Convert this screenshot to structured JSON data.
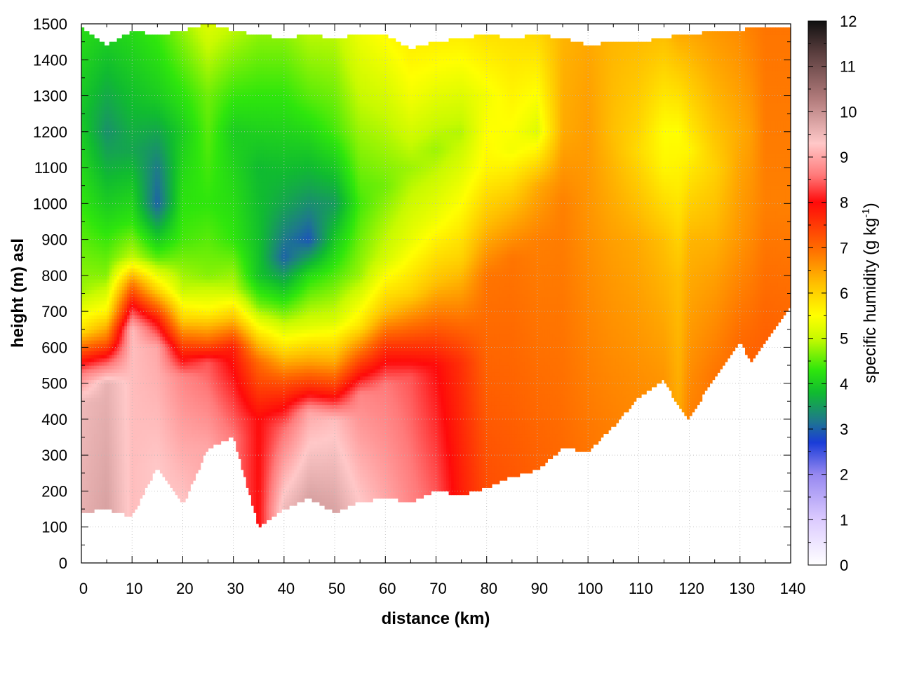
{
  "chart_data": {
    "type": "heatmap",
    "title": "",
    "xlabel": "distance (km)",
    "ylabel": "height (m) asl",
    "xlim": [
      0,
      140
    ],
    "ylim": [
      0,
      1500
    ],
    "x_ticks": [
      0,
      10,
      20,
      30,
      40,
      50,
      60,
      70,
      80,
      90,
      100,
      110,
      120,
      130,
      140
    ],
    "y_ticks": [
      0,
      100,
      200,
      300,
      400,
      500,
      600,
      700,
      800,
      900,
      1000,
      1100,
      1200,
      1300,
      1400,
      1500
    ],
    "grid": true,
    "colorbar": {
      "label_main": "specific humidity (g kg",
      "label_sup": "-1",
      "label_close": ")",
      "range": [
        0,
        12
      ],
      "ticks": [
        0,
        1,
        2,
        3,
        4,
        5,
        6,
        7,
        8,
        9,
        10,
        11,
        12
      ],
      "colors": [
        {
          "value": 0,
          "color": "#ffffff"
        },
        {
          "value": 1,
          "color": "#dccbff"
        },
        {
          "value": 2,
          "color": "#9688f0"
        },
        {
          "value": 2.7,
          "color": "#1a3cd8"
        },
        {
          "value": 3.2,
          "color": "#1e7a8a"
        },
        {
          "value": 3.8,
          "color": "#10bb30"
        },
        {
          "value": 4.3,
          "color": "#2ee60c"
        },
        {
          "value": 5,
          "color": "#c8fa00"
        },
        {
          "value": 5.5,
          "color": "#ffff00"
        },
        {
          "value": 6.2,
          "color": "#ffc000"
        },
        {
          "value": 7,
          "color": "#ff6a00"
        },
        {
          "value": 8,
          "color": "#ff0a0a"
        },
        {
          "value": 8.6,
          "color": "#ff7a7a"
        },
        {
          "value": 9.3,
          "color": "#ffc8c8"
        },
        {
          "value": 10.3,
          "color": "#b07a7a"
        },
        {
          "value": 11.3,
          "color": "#5a3e3e"
        },
        {
          "value": 12,
          "color": "#101010"
        }
      ]
    },
    "profiles": [
      {
        "x": 0,
        "ground": 140,
        "top": 1490,
        "q": [
          [
            140,
            9.6
          ],
          [
            450,
            9.5
          ],
          [
            530,
            8.6
          ],
          [
            580,
            7.5
          ],
          [
            650,
            5.8
          ],
          [
            760,
            4.8
          ],
          [
            1000,
            4.3
          ],
          [
            1250,
            3.9
          ],
          [
            1500,
            4.2
          ]
        ]
      },
      {
        "x": 5,
        "ground": 150,
        "top": 1440,
        "q": [
          [
            150,
            9.8
          ],
          [
            500,
            9.6
          ],
          [
            560,
            8.4
          ],
          [
            620,
            7.0
          ],
          [
            700,
            5.6
          ],
          [
            800,
            4.7
          ],
          [
            1000,
            4.0
          ],
          [
            1200,
            3.4
          ],
          [
            1500,
            4.1
          ]
        ]
      },
      {
        "x": 10,
        "ground": 130,
        "top": 1480,
        "q": [
          [
            130,
            9.2
          ],
          [
            650,
            9.2
          ],
          [
            720,
            8.0
          ],
          [
            780,
            6.8
          ],
          [
            850,
            5.0
          ],
          [
            950,
            4.3
          ],
          [
            1150,
            3.6
          ],
          [
            1500,
            4.2
          ]
        ]
      },
      {
        "x": 15,
        "ground": 270,
        "top": 1470,
        "q": [
          [
            270,
            9.3
          ],
          [
            600,
            9.0
          ],
          [
            680,
            7.8
          ],
          [
            760,
            6.0
          ],
          [
            850,
            4.5
          ],
          [
            1000,
            3.0
          ],
          [
            1100,
            3.2
          ],
          [
            1300,
            4.0
          ],
          [
            1500,
            4.4
          ]
        ]
      },
      {
        "x": 20,
        "ground": 160,
        "top": 1480,
        "q": [
          [
            160,
            9.3
          ],
          [
            520,
            8.7
          ],
          [
            600,
            7.5
          ],
          [
            680,
            6.0
          ],
          [
            760,
            5.0
          ],
          [
            900,
            4.4
          ],
          [
            1200,
            4.0
          ],
          [
            1500,
            4.8
          ]
        ]
      },
      {
        "x": 25,
        "ground": 320,
        "top": 1500,
        "q": [
          [
            320,
            9.0
          ],
          [
            560,
            8.4
          ],
          [
            620,
            7.0
          ],
          [
            700,
            5.6
          ],
          [
            800,
            4.7
          ],
          [
            1000,
            4.3
          ],
          [
            1300,
            4.6
          ],
          [
            1500,
            5.2
          ]
        ]
      },
      {
        "x": 30,
        "ground": 350,
        "top": 1480,
        "q": [
          [
            350,
            8.6
          ],
          [
            600,
            7.8
          ],
          [
            680,
            6.2
          ],
          [
            760,
            5.0
          ],
          [
            900,
            4.3
          ],
          [
            1200,
            4.0
          ],
          [
            1500,
            5.0
          ]
        ]
      },
      {
        "x": 35,
        "ground": 100,
        "top": 1470,
        "q": [
          [
            100,
            8.0
          ],
          [
            400,
            8.0
          ],
          [
            560,
            7.0
          ],
          [
            650,
            5.6
          ],
          [
            720,
            4.6
          ],
          [
            800,
            3.9
          ],
          [
            1100,
            3.8
          ],
          [
            1500,
            4.8
          ]
        ]
      },
      {
        "x": 40,
        "ground": 150,
        "top": 1460,
        "q": [
          [
            150,
            9.5
          ],
          [
            380,
            8.5
          ],
          [
            500,
            7.3
          ],
          [
            600,
            5.8
          ],
          [
            700,
            4.6
          ],
          [
            850,
            3.0
          ],
          [
            1000,
            3.6
          ],
          [
            1300,
            4.3
          ],
          [
            1500,
            4.8
          ]
        ]
      },
      {
        "x": 45,
        "ground": 180,
        "top": 1470,
        "q": [
          [
            180,
            9.8
          ],
          [
            420,
            9.0
          ],
          [
            480,
            7.8
          ],
          [
            560,
            6.5
          ],
          [
            660,
            5.2
          ],
          [
            800,
            4.2
          ],
          [
            900,
            2.9
          ],
          [
            1050,
            3.6
          ],
          [
            1300,
            4.5
          ],
          [
            1500,
            5.0
          ]
        ]
      },
      {
        "x": 50,
        "ground": 140,
        "top": 1460,
        "q": [
          [
            140,
            9.8
          ],
          [
            400,
            9.2
          ],
          [
            470,
            7.8
          ],
          [
            560,
            6.4
          ],
          [
            680,
            5.1
          ],
          [
            850,
            4.2
          ],
          [
            1000,
            3.5
          ],
          [
            1200,
            4.4
          ],
          [
            1500,
            5.0
          ]
        ]
      },
      {
        "x": 55,
        "ground": 170,
        "top": 1470,
        "q": [
          [
            170,
            9.3
          ],
          [
            470,
            8.7
          ],
          [
            560,
            7.4
          ],
          [
            660,
            5.8
          ],
          [
            800,
            4.8
          ],
          [
            1000,
            4.4
          ],
          [
            1200,
            4.8
          ],
          [
            1500,
            5.4
          ]
        ]
      },
      {
        "x": 60,
        "ground": 180,
        "top": 1470,
        "q": [
          [
            180,
            9.0
          ],
          [
            500,
            8.6
          ],
          [
            600,
            7.6
          ],
          [
            700,
            6.2
          ],
          [
            850,
            5.1
          ],
          [
            1050,
            4.6
          ],
          [
            1250,
            5.0
          ],
          [
            1500,
            5.6
          ]
        ]
      },
      {
        "x": 65,
        "ground": 170,
        "top": 1430,
        "q": [
          [
            170,
            8.7
          ],
          [
            520,
            8.4
          ],
          [
            620,
            7.4
          ],
          [
            750,
            6.0
          ],
          [
            900,
            5.3
          ],
          [
            1100,
            4.8
          ],
          [
            1300,
            5.4
          ],
          [
            1500,
            5.8
          ]
        ]
      },
      {
        "x": 70,
        "ground": 200,
        "top": 1450,
        "q": [
          [
            200,
            8.4
          ],
          [
            550,
            8.0
          ],
          [
            650,
            7.2
          ],
          [
            780,
            6.2
          ],
          [
            950,
            5.4
          ],
          [
            1150,
            4.8
          ],
          [
            1350,
            5.4
          ],
          [
            1500,
            5.8
          ]
        ]
      },
      {
        "x": 75,
        "ground": 190,
        "top": 1460,
        "q": [
          [
            190,
            7.8
          ],
          [
            560,
            7.6
          ],
          [
            700,
            6.8
          ],
          [
            850,
            6.0
          ],
          [
            1000,
            5.5
          ],
          [
            1200,
            4.9
          ],
          [
            1500,
            5.8
          ]
        ]
      },
      {
        "x": 80,
        "ground": 210,
        "top": 1470,
        "q": [
          [
            210,
            7.3
          ],
          [
            800,
            6.9
          ],
          [
            950,
            6.2
          ],
          [
            1100,
            5.6
          ],
          [
            1300,
            5.4
          ],
          [
            1500,
            5.9
          ]
        ]
      },
      {
        "x": 85,
        "ground": 240,
        "top": 1460,
        "q": [
          [
            240,
            7.2
          ],
          [
            850,
            6.9
          ],
          [
            1000,
            6.2
          ],
          [
            1150,
            5.4
          ],
          [
            1500,
            5.9
          ]
        ]
      },
      {
        "x": 90,
        "ground": 260,
        "top": 1470,
        "q": [
          [
            260,
            7.1
          ],
          [
            900,
            6.8
          ],
          [
            1050,
            6.4
          ],
          [
            1200,
            5.2
          ],
          [
            1500,
            6.0
          ]
        ]
      },
      {
        "x": 95,
        "ground": 320,
        "top": 1460,
        "q": [
          [
            320,
            7.0
          ],
          [
            1000,
            6.8
          ],
          [
            1200,
            6.4
          ],
          [
            1500,
            6.3
          ]
        ]
      },
      {
        "x": 100,
        "ground": 310,
        "top": 1440,
        "q": [
          [
            310,
            6.9
          ],
          [
            1000,
            6.6
          ],
          [
            1300,
            6.5
          ],
          [
            1500,
            6.4
          ]
        ]
      },
      {
        "x": 105,
        "ground": 380,
        "top": 1450,
        "q": [
          [
            380,
            6.8
          ],
          [
            900,
            6.5
          ],
          [
            1200,
            6.2
          ],
          [
            1500,
            6.3
          ]
        ]
      },
      {
        "x": 110,
        "ground": 460,
        "top": 1450,
        "q": [
          [
            460,
            6.7
          ],
          [
            900,
            6.4
          ],
          [
            1150,
            5.9
          ],
          [
            1500,
            6.3
          ]
        ]
      },
      {
        "x": 115,
        "ground": 510,
        "top": 1460,
        "q": [
          [
            510,
            6.6
          ],
          [
            900,
            6.2
          ],
          [
            1100,
            5.6
          ],
          [
            1200,
            5.5
          ],
          [
            1500,
            6.3
          ]
        ]
      },
      {
        "x": 118,
        "ground": 430,
        "top": 1470,
        "q": [
          [
            430,
            6.4
          ],
          [
            800,
            6.2
          ],
          [
            1050,
            5.7
          ],
          [
            1200,
            5.5
          ],
          [
            1500,
            6.5
          ]
        ]
      },
      {
        "x": 120,
        "ground": 400,
        "top": 1470,
        "q": [
          [
            400,
            6.8
          ],
          [
            900,
            6.3
          ],
          [
            1150,
            5.6
          ],
          [
            1500,
            6.5
          ]
        ]
      },
      {
        "x": 125,
        "ground": 520,
        "top": 1480,
        "q": [
          [
            520,
            6.9
          ],
          [
            800,
            6.5
          ],
          [
            1100,
            6.0
          ],
          [
            1500,
            6.6
          ]
        ]
      },
      {
        "x": 130,
        "ground": 620,
        "top": 1480,
        "q": [
          [
            620,
            7.0
          ],
          [
            900,
            6.6
          ],
          [
            1200,
            6.4
          ],
          [
            1500,
            6.7
          ]
        ]
      },
      {
        "x": 132,
        "ground": 560,
        "top": 1490,
        "q": [
          [
            560,
            7.1
          ],
          [
            900,
            6.7
          ],
          [
            1200,
            6.5
          ],
          [
            1500,
            6.8
          ]
        ]
      },
      {
        "x": 135,
        "ground": 620,
        "top": 1490,
        "q": [
          [
            620,
            7.1
          ],
          [
            1000,
            6.8
          ],
          [
            1500,
            6.9
          ]
        ]
      },
      {
        "x": 140,
        "ground": 710,
        "top": 1490,
        "q": [
          [
            710,
            7.0
          ],
          [
            1000,
            6.8
          ],
          [
            1500,
            6.9
          ]
        ]
      }
    ]
  }
}
